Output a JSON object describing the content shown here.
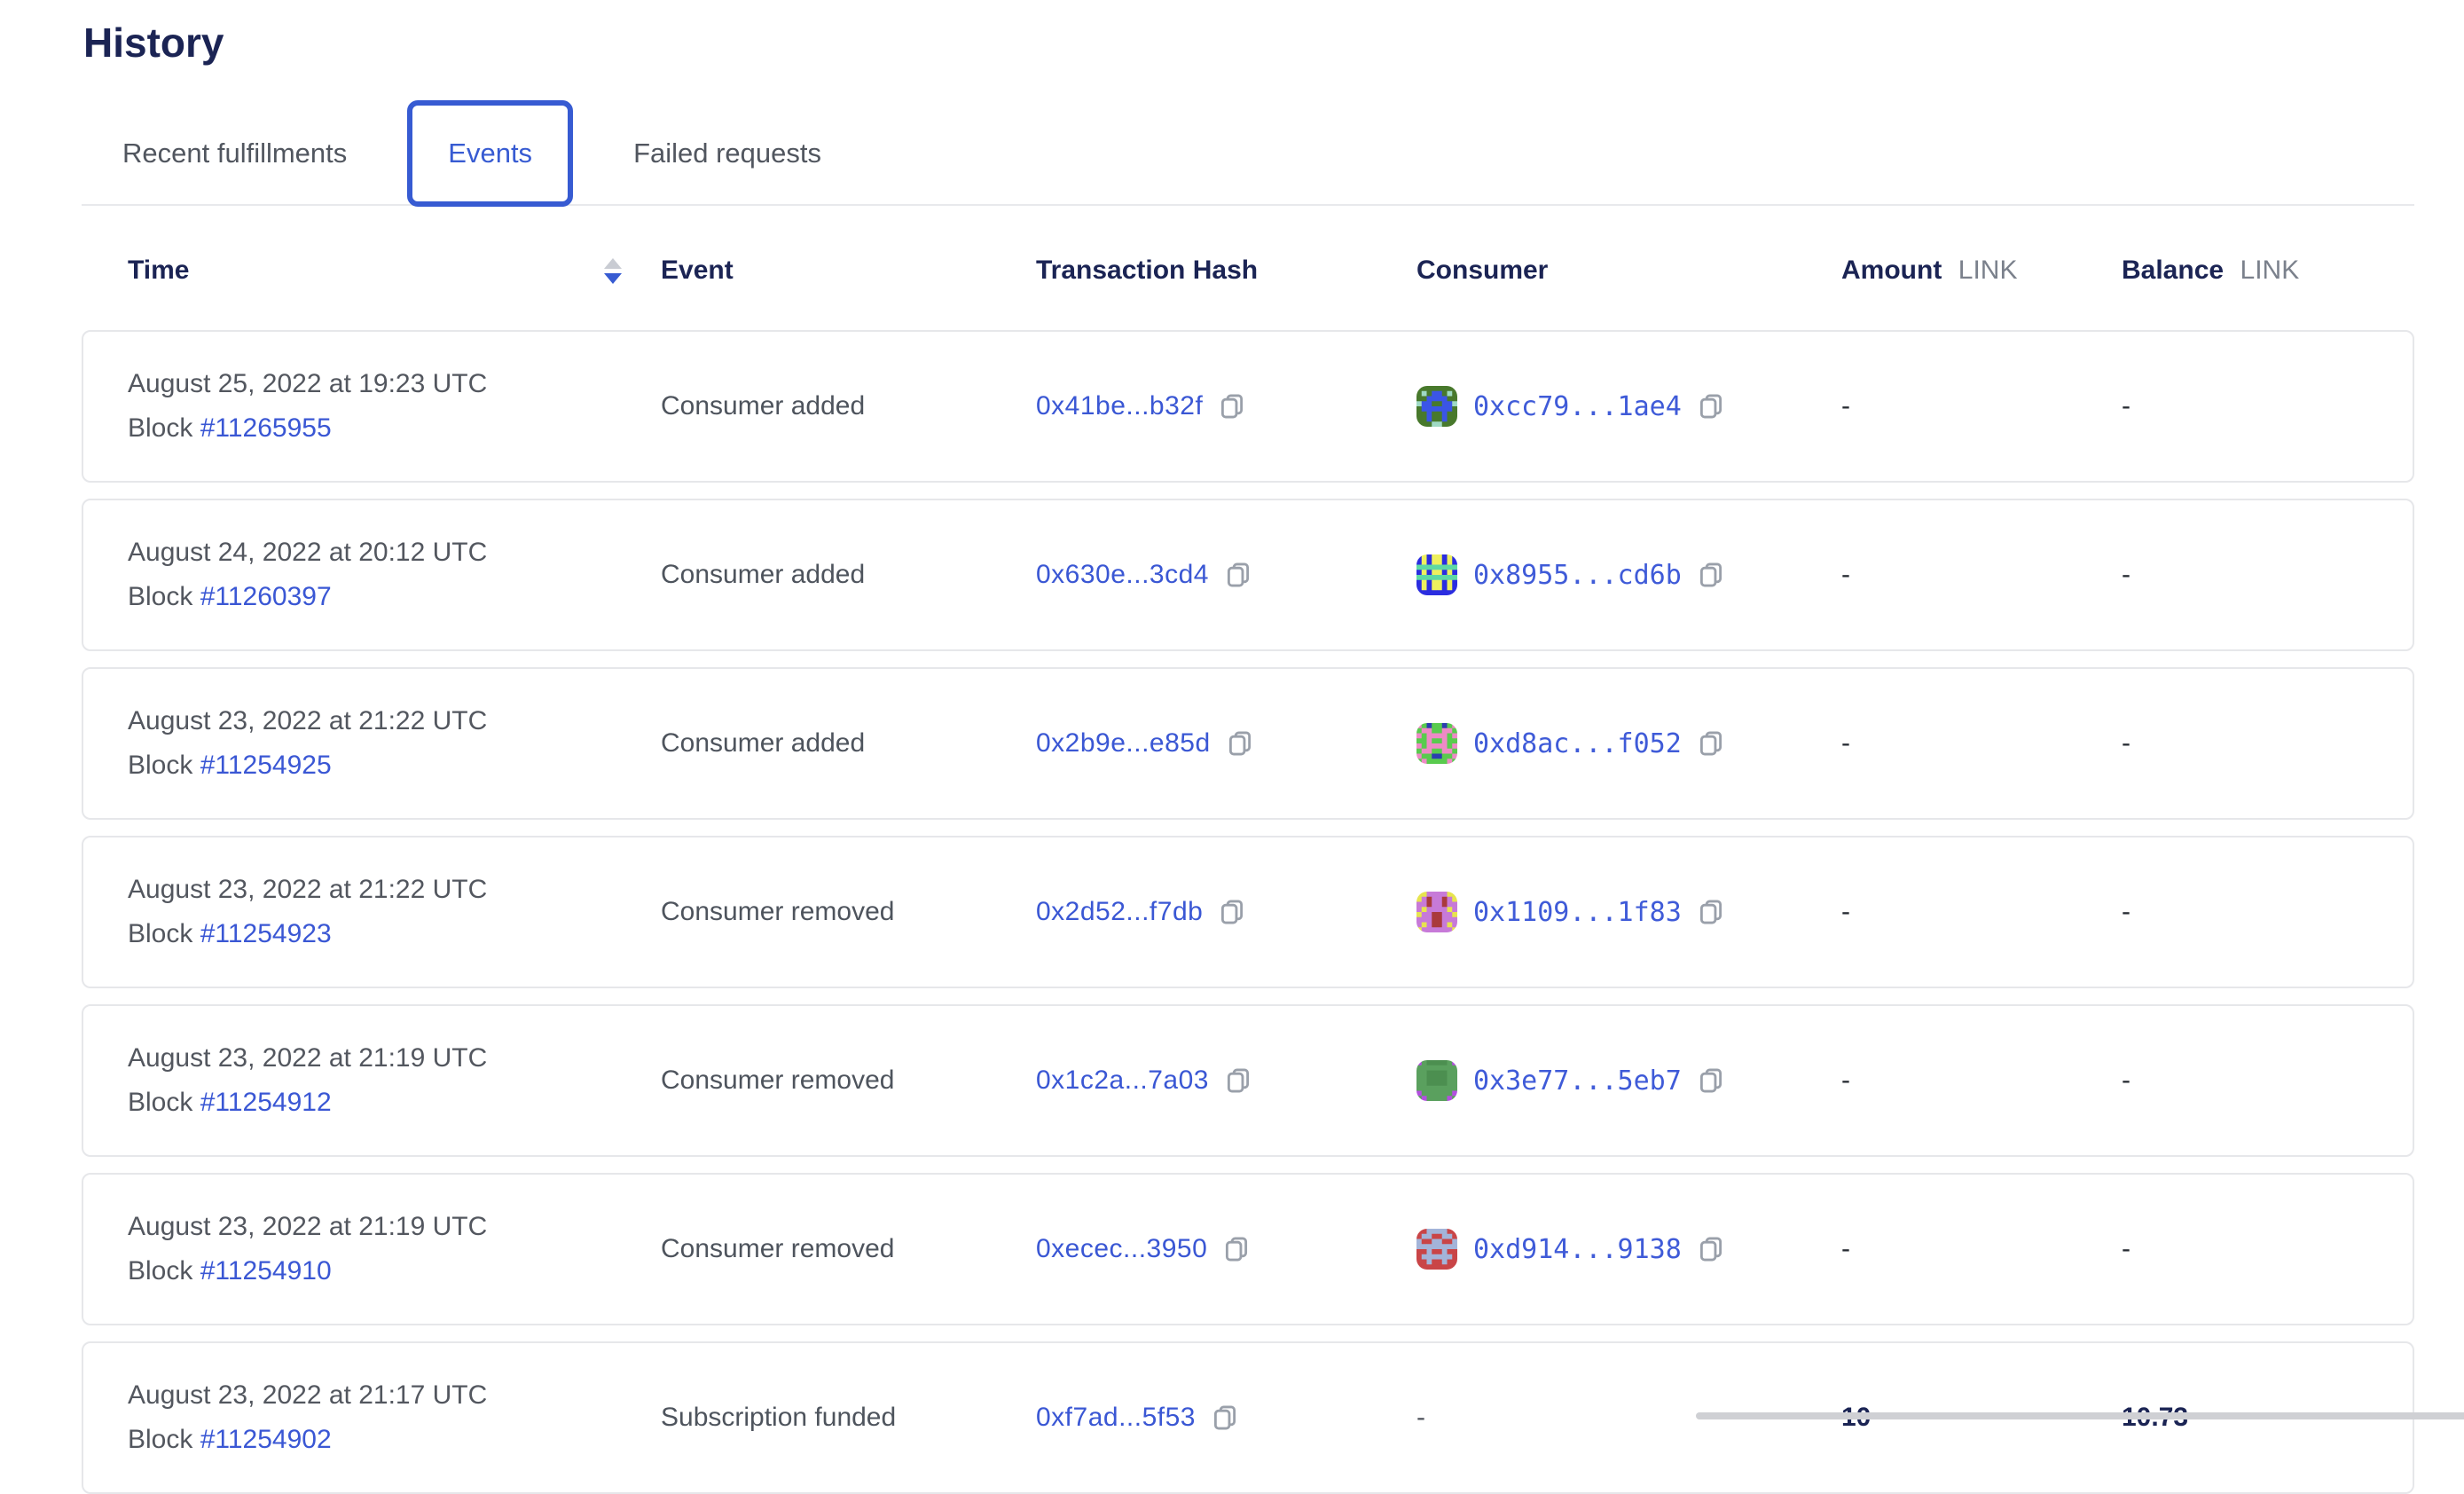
{
  "page": {
    "title": "History"
  },
  "tabs": [
    {
      "label": "Recent fulfillments",
      "active": false
    },
    {
      "label": "Events",
      "active": true
    },
    {
      "label": "Failed requests",
      "active": false
    }
  ],
  "table": {
    "columns": {
      "time": "Time",
      "event": "Event",
      "tx_hash": "Transaction Hash",
      "consumer": "Consumer",
      "amount": "Amount",
      "balance": "Balance",
      "unit": "LINK"
    },
    "sort": {
      "column": "time",
      "direction": "descending"
    },
    "rows": [
      {
        "time": "August 25, 2022 at 19:23 UTC",
        "block_label": "Block",
        "block": "#11265955",
        "event": "Consumer added",
        "tx_hash": "0x41be...b32f",
        "consumer": {
          "address": "0xcc79...1ae4",
          "avatar": {
            "bg": "#48792c",
            "fg": "#3b55e6",
            "spot": "#9fd9c4",
            "grid": [
              "........",
              ".s.ff.s.",
              "..ffff..",
              "sff..ffs",
              ".ffffff.",
              "..f..f..",
              "..f..f..",
              "...ss..."
            ]
          }
        },
        "amount": "-",
        "balance": "-"
      },
      {
        "time": "August 24, 2022 at 20:12 UTC",
        "block_label": "Block",
        "block": "#11260397",
        "event": "Consumer added",
        "tx_hash": "0x630e...3cd4",
        "consumer": {
          "address": "0x8955...cd6b",
          "avatar": {
            "bg": "#2b2de0",
            "fg": "#eef05e",
            "spot": "#5ed9a4",
            "grid": [
              ".f.ff.f.",
              ".f.ff.f.",
              "ssssssss",
              ".f.ff.f.",
              "ssssssss",
              ".f.ff.f.",
              ".f.ff.f.",
              "........"
            ]
          }
        },
        "amount": "-",
        "balance": "-"
      },
      {
        "time": "August 23, 2022 at 21:22 UTC",
        "block_label": "Block",
        "block": "#11254925",
        "event": "Consumer added",
        "tx_hash": "0x2b9e...e85d",
        "consumer": {
          "address": "0xd8ac...f052",
          "avatar": {
            "bg": "#59cb4e",
            "fg": "#ee8ac6",
            "spot": "#2c3eaf",
            "grid": [
              "f.s..s.f",
              ".ff..ff.",
              "f.ffff.f",
              "..f..f..",
              "f.ffff.f",
              ".ff..ff.",
              "f..ss..f",
              ".f....f."
            ]
          }
        },
        "amount": "-",
        "balance": "-"
      },
      {
        "time": "August 23, 2022 at 21:22 UTC",
        "block_label": "Block",
        "block": "#11254923",
        "event": "Consumer removed",
        "tx_hash": "0x2d52...f7db",
        "consumer": {
          "address": "0x1109...1f83",
          "avatar": {
            "bg": "#c77ad8",
            "fg": "#e7e44e",
            "spot": "#a93a3c",
            "grid": [
              "ff....ff",
              "f.s..s.f",
              "..s..s..",
              ".f....f.",
              "f..ss..f",
              "...ss...",
              ".f.ss.f.",
              "f......f"
            ]
          }
        },
        "amount": "-",
        "balance": "-"
      },
      {
        "time": "August 23, 2022 at 21:19 UTC",
        "block_label": "Block",
        "block": "#11254912",
        "event": "Consumer removed",
        "tx_hash": "0x1c2a...7a03",
        "consumer": {
          "address": "0x3e77...5eb7",
          "avatar": {
            "bg": "#5aa05e",
            "fg": "#4c8f50",
            "spot": "#b44fe0",
            "grid": [
              "s.ffff.s",
              "........",
              "..ffff..",
              "..ffff..",
              "..ffff..",
              "........",
              "s......s",
              ".s....s."
            ]
          }
        },
        "amount": "-",
        "balance": "-"
      },
      {
        "time": "August 23, 2022 at 21:19 UTC",
        "block_label": "Block",
        "block": "#11254910",
        "event": "Consumer removed",
        "tx_hash": "0xecec...3950",
        "consumer": {
          "address": "0xd914...9138",
          "avatar": {
            "bg": "#c94547",
            "fg": "#a3b4d9",
            "spot": "#8f3133",
            "grid": [
              "..ffff..",
              ".ff..ff.",
              "f..ff..f",
              "ffffffff",
              "..f..f..",
              ".ffffff.",
              "..f..f..",
              "........"
            ]
          }
        },
        "amount": "-",
        "balance": "-"
      },
      {
        "time": "August 23, 2022 at 21:17 UTC",
        "block_label": "Block",
        "block": "#11254902",
        "event": "Subscription funded",
        "tx_hash": "0xf7ad...5f53",
        "consumer": {
          "address": "-"
        },
        "amount": "10",
        "balance": "10.73"
      }
    ]
  },
  "icons": {
    "copy": "copy-icon",
    "sort": "sort-arrows-icon"
  },
  "colors": {
    "accent": "#375bd2",
    "link": "#3a57d4",
    "heading": "#1b2454",
    "card_border": "#e6e7ea",
    "muted_text": "#53575f",
    "unit_text": "#7b818c"
  }
}
